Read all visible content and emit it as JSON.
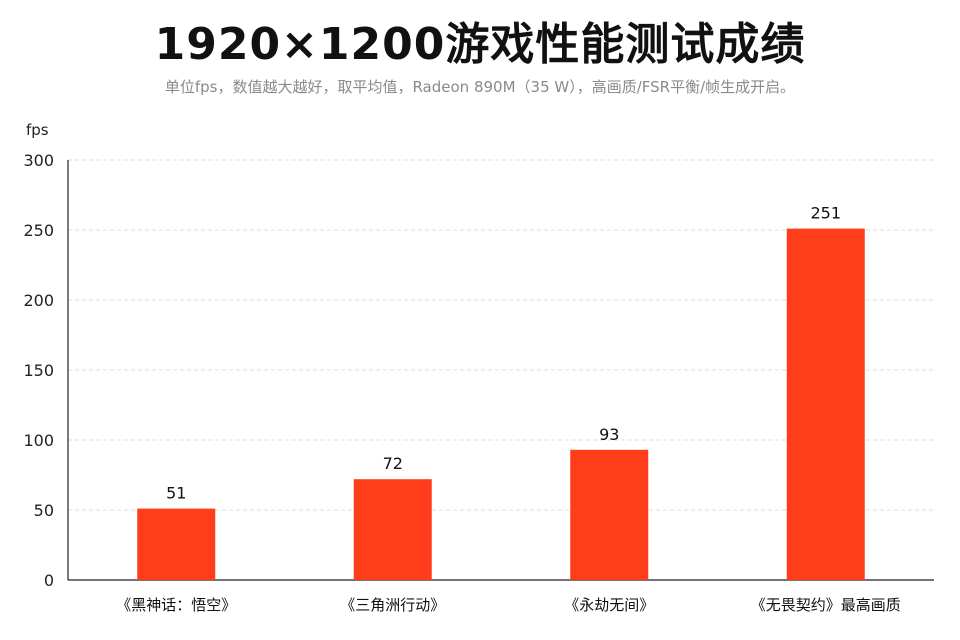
{
  "chart_data": {
    "type": "bar",
    "title": "1920×1200游戏性能测试成绩",
    "subtitle": "单位fps，数值越大越好，取平均值，Radeon 890M（35 W），高画质/FSR平衡/帧生成开启。",
    "ylabel": "fps",
    "xlabel": "",
    "ylim": [
      0,
      300
    ],
    "yticks": [
      0,
      50,
      100,
      150,
      200,
      250,
      300
    ],
    "grid": true,
    "categories": [
      "《黑神话：悟空》",
      "《三角洲行动》",
      "《永劫无间》",
      "《无畏契约》最高画质"
    ],
    "values": [
      51,
      72,
      93,
      251
    ],
    "bar_color": "#ff3d1a"
  }
}
